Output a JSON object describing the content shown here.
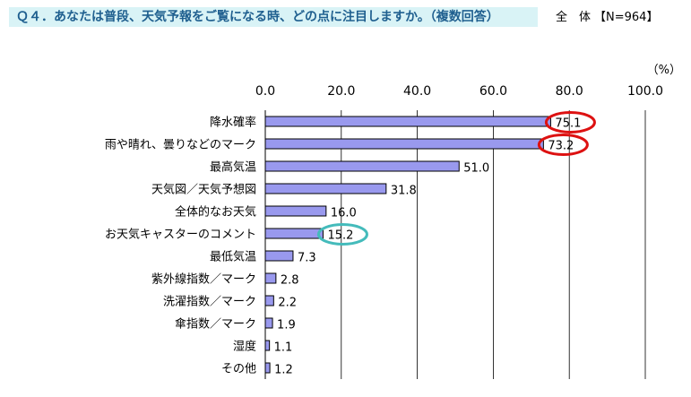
{
  "header": {
    "question": "Ｑ４．あなたは普段、天気予報をご覧になる時、どの点に注目しますか。（複数回答）",
    "total_label": "全　体",
    "total_n": "【N=964】"
  },
  "colors": {
    "bar_fill": "#9999ee",
    "bar_stroke": "#000000",
    "highlight_red": "#dd1111",
    "highlight_teal": "#44bbbb",
    "header_bg": "#d9f3f6",
    "header_text": "#1f5f8f"
  },
  "chart_data": {
    "type": "bar",
    "orientation": "horizontal",
    "unit_label": "（%）",
    "xlim": [
      0,
      100
    ],
    "xticks": [
      "0.0",
      "20.0",
      "40.0",
      "60.0",
      "80.0",
      "100.0"
    ],
    "grid": true,
    "categories": [
      "降水確率",
      "雨や晴れ、曇りなどのマーク",
      "最高気温",
      "天気図／天気予想図",
      "全体的なお天気",
      "お天気キャスターのコメント",
      "最低気温",
      "紫外線指数／マーク",
      "洗濯指数／マーク",
      "傘指数／マーク",
      "湿度",
      "その他"
    ],
    "values": [
      75.1,
      73.2,
      51.0,
      31.8,
      16.0,
      15.2,
      7.3,
      2.8,
      2.2,
      1.9,
      1.1,
      1.2
    ],
    "value_labels": [
      "75.1",
      "73.2",
      "51.0",
      "31.8",
      "16.0",
      "15.2",
      "7.3",
      "2.8",
      "2.2",
      "1.9",
      "1.1",
      "1.2"
    ],
    "highlights": [
      {
        "index": 0,
        "color": "red"
      },
      {
        "index": 1,
        "color": "red"
      },
      {
        "index": 5,
        "color": "teal"
      }
    ]
  }
}
